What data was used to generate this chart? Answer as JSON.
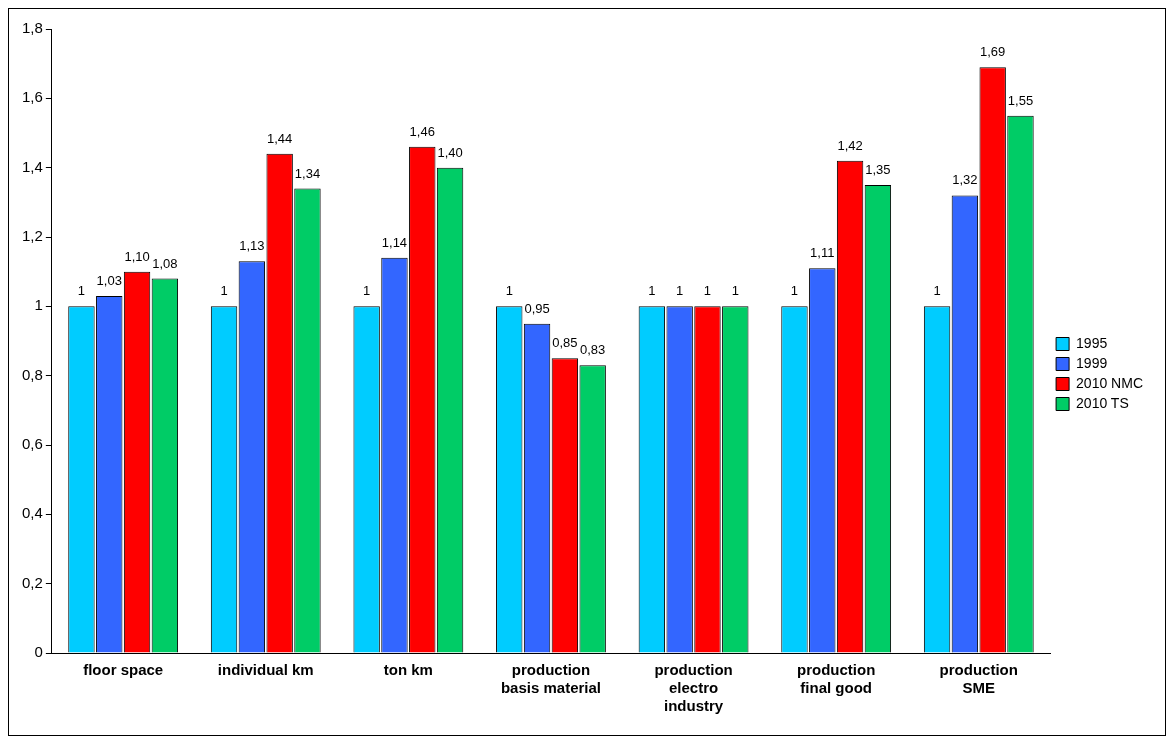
{
  "chart_data": {
    "type": "bar",
    "categories": [
      "floor space",
      "individual km",
      "ton km",
      "production basis material",
      "production electro industry",
      "production final good",
      "production SME"
    ],
    "series": [
      {
        "name": "1995",
        "color": "#00ccff",
        "values": [
          1,
          1,
          1,
          1,
          1,
          1,
          1
        ],
        "value_labels": [
          "1",
          "1",
          "1",
          "1",
          "1",
          "1",
          "1"
        ]
      },
      {
        "name": "1999",
        "color": "#3366ff",
        "values": [
          1.03,
          1.13,
          1.14,
          0.95,
          1,
          1.11,
          1.32
        ],
        "value_labels": [
          "1,03",
          "1,13",
          "1,14",
          "0,95",
          "1",
          "1,11",
          "1,32"
        ]
      },
      {
        "name": "2010 NMC",
        "color": "#ff0000",
        "values": [
          1.1,
          1.44,
          1.46,
          0.85,
          1,
          1.42,
          1.69
        ],
        "value_labels": [
          "1,10",
          "1,44",
          "1,46",
          "0,85",
          "1",
          "1,42",
          "1,69"
        ]
      },
      {
        "name": "2010 TS",
        "color": "#00cc66",
        "values": [
          1.08,
          1.34,
          1.4,
          0.83,
          1,
          1.35,
          1.55
        ],
        "value_labels": [
          "1,08",
          "1,34",
          "1,40",
          "0,83",
          "1",
          "1,35",
          "1,55"
        ]
      }
    ],
    "ylim": [
      0,
      1.8
    ],
    "yticks": [
      0,
      {
        "value": 0.2,
        "label": "0,2"
      },
      {
        "value": 0.4,
        "label": "0,4"
      },
      {
        "value": 0.6,
        "label": "0,6"
      },
      {
        "value": 0.8,
        "label": "0,8"
      },
      1,
      {
        "value": 1.2,
        "label": "1,2"
      },
      {
        "value": 1.4,
        "label": "1,4"
      },
      {
        "value": 1.6,
        "label": "1,6"
      },
      {
        "value": 1.8,
        "label": "1,8"
      }
    ],
    "grid": false,
    "legend": "right"
  }
}
